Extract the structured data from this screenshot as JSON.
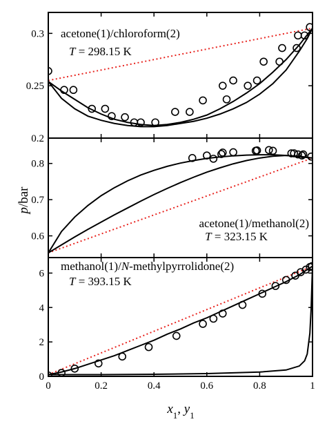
{
  "chart_data": {
    "shared_x": {
      "range": [
        0,
        1
      ],
      "ticks": [
        0,
        0.2,
        0.4,
        0.6,
        0.8,
        1
      ],
      "tick_labels": [
        "0",
        "0.2",
        "0.4",
        "0.6",
        "0.8",
        "1"
      ],
      "label_var": "x",
      "label_sub1": "1",
      "label_sep": ", ",
      "label_var2": "y",
      "label_sub2": "1"
    },
    "shared_y_label": {
      "italic": "p",
      "rest": "/bar"
    },
    "panels": [
      {
        "type": "line",
        "annotation": {
          "system": "acetone(1)/chloroform(2)",
          "temp_var": "T",
          "temp_value": " = 298.15 K"
        },
        "ylim": [
          0.2,
          0.32
        ],
        "yticks": [
          0.2,
          0.25,
          0.3
        ],
        "ytick_labels": [
          "0.2",
          "0.25",
          "0.3"
        ],
        "ideal_line": [
          [
            0,
            0.255
          ],
          [
            1,
            0.305
          ]
        ],
        "bubble_curve": [
          [
            0,
            0.254
          ],
          [
            0.05,
            0.245
          ],
          [
            0.1,
            0.237
          ],
          [
            0.15,
            0.229
          ],
          [
            0.2,
            0.223
          ],
          [
            0.25,
            0.218
          ],
          [
            0.3,
            0.215
          ],
          [
            0.35,
            0.213
          ],
          [
            0.4,
            0.212
          ],
          [
            0.45,
            0.213
          ],
          [
            0.5,
            0.215
          ],
          [
            0.55,
            0.218
          ],
          [
            0.6,
            0.222
          ],
          [
            0.65,
            0.228
          ],
          [
            0.7,
            0.235
          ],
          [
            0.75,
            0.243
          ],
          [
            0.8,
            0.252
          ],
          [
            0.85,
            0.263
          ],
          [
            0.9,
            0.275
          ],
          [
            0.95,
            0.289
          ],
          [
            1,
            0.305
          ]
        ],
        "dew_curve": [
          [
            0,
            0.254
          ],
          [
            0.05,
            0.238
          ],
          [
            0.1,
            0.228
          ],
          [
            0.15,
            0.221
          ],
          [
            0.2,
            0.217
          ],
          [
            0.25,
            0.214
          ],
          [
            0.3,
            0.212
          ],
          [
            0.35,
            0.211
          ],
          [
            0.4,
            0.211
          ],
          [
            0.45,
            0.212
          ],
          [
            0.5,
            0.214
          ],
          [
            0.55,
            0.216
          ],
          [
            0.6,
            0.219
          ],
          [
            0.65,
            0.223
          ],
          [
            0.7,
            0.228
          ],
          [
            0.75,
            0.234
          ],
          [
            0.8,
            0.242
          ],
          [
            0.85,
            0.252
          ],
          [
            0.9,
            0.265
          ],
          [
            0.95,
            0.283
          ],
          [
            0.98,
            0.295
          ],
          [
            1,
            0.305
          ]
        ],
        "points": [
          [
            0,
            0.264
          ],
          [
            0.06,
            0.246
          ],
          [
            0.095,
            0.246
          ],
          [
            0.165,
            0.228
          ],
          [
            0.215,
            0.228
          ],
          [
            0.24,
            0.221
          ],
          [
            0.29,
            0.22
          ],
          [
            0.325,
            0.215
          ],
          [
            0.35,
            0.215
          ],
          [
            0.405,
            0.215
          ],
          [
            0.48,
            0.225
          ],
          [
            0.535,
            0.225
          ],
          [
            0.585,
            0.236
          ],
          [
            0.66,
            0.25
          ],
          [
            0.675,
            0.237
          ],
          [
            0.7,
            0.255
          ],
          [
            0.755,
            0.25
          ],
          [
            0.79,
            0.255
          ],
          [
            0.815,
            0.273
          ],
          [
            0.875,
            0.273
          ],
          [
            0.885,
            0.286
          ],
          [
            0.94,
            0.286
          ],
          [
            0.945,
            0.298
          ],
          [
            0.97,
            0.298
          ],
          [
            0.99,
            0.306
          ]
        ]
      },
      {
        "type": "line",
        "annotation": {
          "system": "acetone(1)/methanol(2)",
          "temp_var": "T",
          "temp_value": " = 323.15 K"
        },
        "ylim": [
          0.54,
          0.87
        ],
        "yticks": [
          0.6,
          0.7,
          0.8
        ],
        "ytick_labels": [
          "0.6",
          "0.7",
          "0.8"
        ],
        "ideal_line": [
          [
            0,
            0.553
          ],
          [
            1,
            0.815
          ]
        ],
        "bubble_curve": [
          [
            0,
            0.553
          ],
          [
            0.05,
            0.612
          ],
          [
            0.1,
            0.652
          ],
          [
            0.15,
            0.684
          ],
          [
            0.2,
            0.711
          ],
          [
            0.25,
            0.733
          ],
          [
            0.3,
            0.752
          ],
          [
            0.35,
            0.768
          ],
          [
            0.4,
            0.781
          ],
          [
            0.45,
            0.792
          ],
          [
            0.5,
            0.801
          ],
          [
            0.55,
            0.808
          ],
          [
            0.6,
            0.814
          ],
          [
            0.65,
            0.818
          ],
          [
            0.7,
            0.821
          ],
          [
            0.75,
            0.823
          ],
          [
            0.8,
            0.824
          ],
          [
            0.85,
            0.824
          ],
          [
            0.9,
            0.822
          ],
          [
            0.95,
            0.819
          ],
          [
            1,
            0.815
          ]
        ],
        "dew_curve": [
          [
            0,
            0.553
          ],
          [
            0.05,
            0.575
          ],
          [
            0.1,
            0.597
          ],
          [
            0.15,
            0.618
          ],
          [
            0.2,
            0.638
          ],
          [
            0.25,
            0.658
          ],
          [
            0.3,
            0.677
          ],
          [
            0.35,
            0.696
          ],
          [
            0.4,
            0.714
          ],
          [
            0.45,
            0.731
          ],
          [
            0.5,
            0.747
          ],
          [
            0.55,
            0.762
          ],
          [
            0.6,
            0.776
          ],
          [
            0.65,
            0.788
          ],
          [
            0.7,
            0.799
          ],
          [
            0.75,
            0.808
          ],
          [
            0.8,
            0.815
          ],
          [
            0.85,
            0.82
          ],
          [
            0.9,
            0.822
          ],
          [
            0.95,
            0.82
          ],
          [
            1,
            0.815
          ]
        ],
        "points": [
          [
            0.545,
            0.815
          ],
          [
            0.6,
            0.822
          ],
          [
            0.625,
            0.813
          ],
          [
            0.655,
            0.826
          ],
          [
            0.66,
            0.83
          ],
          [
            0.7,
            0.831
          ],
          [
            0.785,
            0.835
          ],
          [
            0.79,
            0.836
          ],
          [
            0.835,
            0.837
          ],
          [
            0.85,
            0.835
          ],
          [
            0.92,
            0.828
          ],
          [
            0.93,
            0.828
          ],
          [
            0.945,
            0.825
          ],
          [
            0.96,
            0.822
          ],
          [
            0.965,
            0.825
          ],
          [
            0.995,
            0.819
          ]
        ]
      },
      {
        "type": "line",
        "annotation": {
          "system_pre": "methanol(1)/",
          "system_italic": "N",
          "system_post": "-methylpyrrolidone(2)",
          "temp_var": "T",
          "temp_value": " = 393.15 K"
        },
        "ylim": [
          0,
          6.9
        ],
        "yticks": [
          0,
          2,
          4,
          6
        ],
        "ytick_labels": [
          "0",
          "2",
          "4",
          "6"
        ],
        "ideal_line": [
          [
            0,
            0.1
          ],
          [
            1,
            6.4
          ]
        ],
        "bubble_curve": [
          [
            0,
            0.1
          ],
          [
            0.05,
            0.25
          ],
          [
            0.1,
            0.45
          ],
          [
            0.15,
            0.7
          ],
          [
            0.2,
            0.95
          ],
          [
            0.25,
            1.2
          ],
          [
            0.3,
            1.5
          ],
          [
            0.35,
            1.8
          ],
          [
            0.4,
            2.1
          ],
          [
            0.45,
            2.45
          ],
          [
            0.5,
            2.75
          ],
          [
            0.55,
            3.1
          ],
          [
            0.6,
            3.4
          ],
          [
            0.65,
            3.75
          ],
          [
            0.7,
            4.1
          ],
          [
            0.75,
            4.45
          ],
          [
            0.8,
            4.8
          ],
          [
            0.85,
            5.15
          ],
          [
            0.9,
            5.5
          ],
          [
            0.95,
            5.9
          ],
          [
            1,
            6.4
          ]
        ],
        "dew_curve": [
          [
            0,
            0.1
          ],
          [
            0.2,
            0.1
          ],
          [
            0.4,
            0.12
          ],
          [
            0.6,
            0.16
          ],
          [
            0.8,
            0.25
          ],
          [
            0.9,
            0.37
          ],
          [
            0.95,
            0.6
          ],
          [
            0.97,
            0.9
          ],
          [
            0.98,
            1.3
          ],
          [
            0.99,
            2.5
          ],
          [
            0.995,
            4.0
          ],
          [
            0.998,
            5.5
          ],
          [
            1,
            6.4
          ]
        ],
        "points": [
          [
            0,
            0.05
          ],
          [
            0.05,
            0.2
          ],
          [
            0.1,
            0.45
          ],
          [
            0.19,
            0.75
          ],
          [
            0.28,
            1.15
          ],
          [
            0.38,
            1.7
          ],
          [
            0.485,
            2.35
          ],
          [
            0.585,
            3.05
          ],
          [
            0.625,
            3.35
          ],
          [
            0.66,
            3.65
          ],
          [
            0.735,
            4.15
          ],
          [
            0.81,
            4.8
          ],
          [
            0.86,
            5.25
          ],
          [
            0.9,
            5.6
          ],
          [
            0.935,
            5.85
          ],
          [
            0.955,
            6.05
          ],
          [
            0.975,
            6.2
          ],
          [
            0.99,
            6.35
          ],
          [
            0.998,
            6.4
          ]
        ]
      }
    ]
  }
}
